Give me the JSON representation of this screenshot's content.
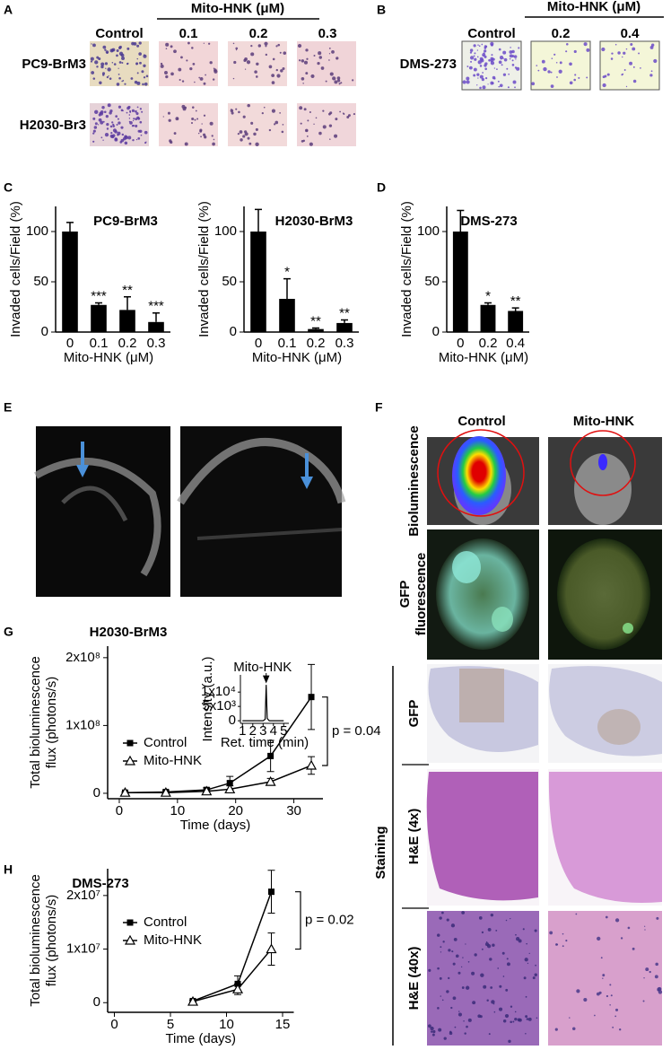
{
  "panel_labels": [
    "A",
    "B",
    "C",
    "D",
    "E",
    "F",
    "G",
    "H"
  ],
  "panel_a": {
    "header": "Mito-HNK (μM)",
    "columns": [
      "Control",
      "0.1",
      "0.2",
      "0.3"
    ],
    "rows": [
      "PC9-BrM3",
      "H2030-Br3"
    ]
  },
  "panel_b": {
    "header": "Mito-HNK (μM)",
    "columns": [
      "Control",
      "0.2",
      "0.4"
    ],
    "rows": [
      "DMS-273"
    ]
  },
  "panel_f": {
    "columns": [
      "Control",
      "Mito-HNK"
    ],
    "rows": [
      "Bioluminescence",
      [
        "GFP",
        "fluorescence"
      ],
      "GFP",
      "H&E (4x)",
      "H&E (40x)"
    ],
    "group": "Staining"
  },
  "chart_data": [
    {
      "type": "bar",
      "title": "PC9-BrM3",
      "categories": [
        "0",
        "0.1",
        "0.2",
        "0.3"
      ],
      "values": [
        100,
        27,
        22,
        10
      ],
      "errors": [
        9,
        2,
        13,
        9
      ],
      "significance": [
        null,
        "***",
        "**",
        "***"
      ],
      "color": "#000000",
      "xlabel": "Mito-HNK (μM)",
      "ylabel": "Invaded cells/Field (%)",
      "ylim": [
        0,
        125
      ],
      "yticks": [
        0,
        50,
        100
      ]
    },
    {
      "type": "bar",
      "title": "H2030-BrM3",
      "categories": [
        "0",
        "0.1",
        "0.2",
        "0.3"
      ],
      "values": [
        100,
        33,
        3,
        9
      ],
      "errors": [
        22,
        20,
        1,
        3
      ],
      "significance": [
        null,
        "*",
        "**",
        "**"
      ],
      "color": "#000000",
      "xlabel": "Mito-HNK (μM)",
      "ylabel": "Invaded cells/Field (%)",
      "ylim": [
        0,
        125
      ],
      "yticks": [
        0,
        50,
        100
      ]
    },
    {
      "type": "bar",
      "title": "DMS-273",
      "categories": [
        "0",
        "0.2",
        "0.4"
      ],
      "values": [
        100,
        27,
        21
      ],
      "errors": [
        21,
        2,
        3
      ],
      "significance": [
        null,
        "*",
        "**"
      ],
      "color": "#000000",
      "xlabel": "Mito-HNK (μM)",
      "ylabel": "Invaded cells/Field (%)",
      "ylim": [
        0,
        125
      ],
      "yticks": [
        0,
        50,
        100
      ]
    },
    {
      "type": "line",
      "title": "H2030-BrM3",
      "x": [
        1,
        8,
        15,
        19,
        26,
        33
      ],
      "series": [
        {
          "name": "Control",
          "color": "#000000",
          "marker": "filled-square",
          "values": [
            1000000,
            2000000,
            5000000,
            15000000,
            55000000,
            142000000
          ],
          "errors": [
            1000000,
            2000000,
            3000000,
            10000000,
            23000000,
            48000000
          ]
        },
        {
          "name": "Mito-HNK",
          "color": "#000000",
          "marker": "open-triangle",
          "values": [
            1000000,
            1000000,
            3000000,
            6000000,
            17000000,
            41000000
          ],
          "errors": [
            1000000,
            1000000,
            2000000,
            5000000,
            5000000,
            13000000
          ]
        }
      ],
      "annotation": "p = 0.04",
      "xlabel": "Time (days)",
      "ylabel": [
        "Total bioluminescence",
        "flux (photons/s)"
      ],
      "xlim": [
        -2,
        35
      ],
      "xticks": [
        0,
        10,
        20,
        30
      ],
      "ylim": [
        -8000000,
        217000000
      ],
      "yticks": [
        0,
        {
          "value": 100000000,
          "label": "1x10⁸"
        },
        {
          "value": 200000000,
          "label": "2x10⁸"
        }
      ]
    },
    {
      "type": "line",
      "x": [
        1,
        2,
        3,
        3.2,
        3.3,
        3.4,
        3.6,
        4,
        5
      ],
      "values": [
        0,
        0,
        0,
        500,
        12500,
        800,
        0,
        0,
        0
      ],
      "color": "#000000",
      "annotation": "Mito-HNK",
      "xlabel": "Ret. time (min)",
      "ylabel": "Intensity (a.u.)",
      "xlim": [
        0.8,
        5.5
      ],
      "xticks": [
        1,
        2,
        3,
        4,
        5
      ],
      "ylim": [
        -900,
        16000
      ],
      "yticks": [
        0,
        {
          "value": 5000,
          "label": "5x10³"
        },
        {
          "value": 10000,
          "label": "1x10⁴"
        }
      ]
    },
    {
      "type": "line",
      "title": "DMS-273",
      "x": [
        7,
        11,
        14
      ],
      "series": [
        {
          "name": "Control",
          "color": "#000000",
          "marker": "filled-square",
          "values": [
            300000,
            3500000,
            20700000
          ],
          "errors": [
            200000,
            1500000,
            4000000
          ]
        },
        {
          "name": "Mito-HNK",
          "color": "#000000",
          "marker": "open-triangle",
          "values": [
            200000,
            2500000,
            10000000
          ],
          "errors": [
            200000,
            1000000,
            3000000
          ]
        }
      ],
      "annotation": "p = 0.02",
      "xlabel": "Time (days)",
      "ylabel": [
        "Total bioluminescence",
        "flux (photons/s)"
      ],
      "xlim": [
        -0.6,
        16
      ],
      "xticks": [
        0,
        5,
        10,
        15
      ],
      "ylim": [
        -1800000,
        25000000
      ],
      "yticks": [
        0,
        {
          "value": 10000000,
          "label": "1x10⁷"
        },
        {
          "value": 20000000,
          "label": "2x10⁷"
        }
      ]
    }
  ]
}
